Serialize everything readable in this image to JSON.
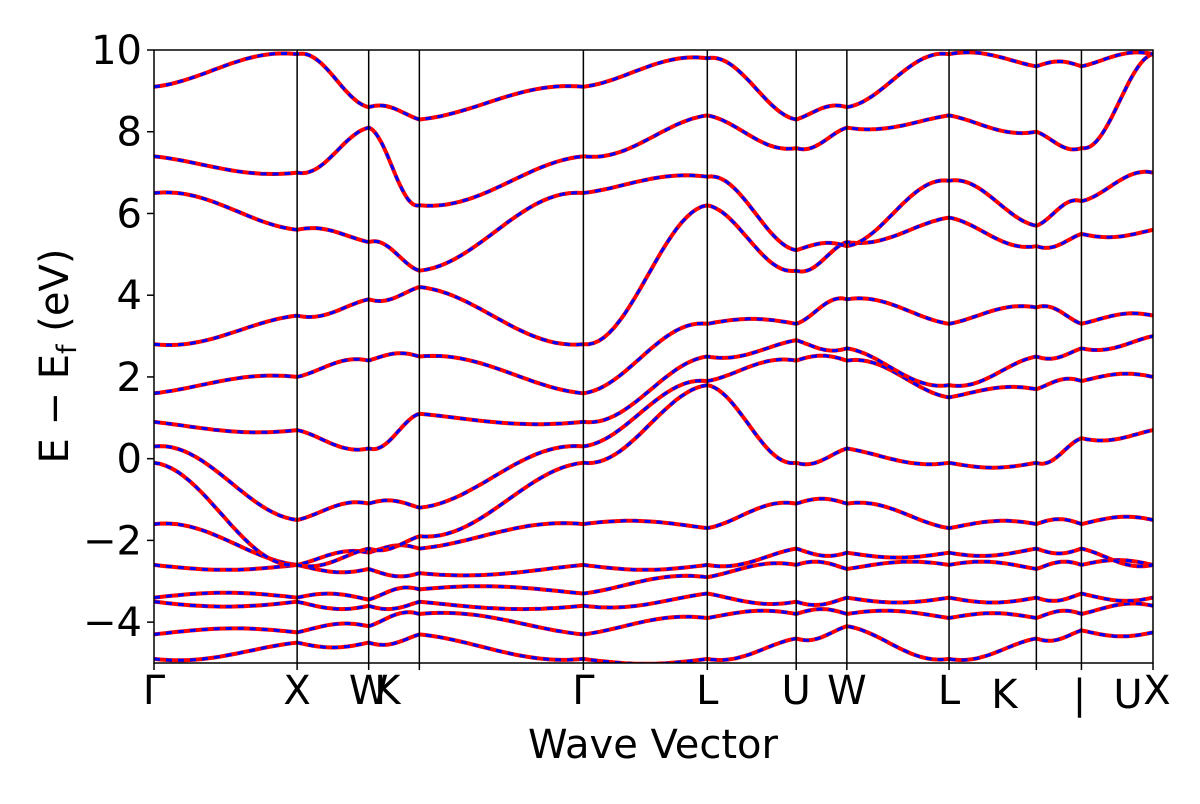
{
  "chart_data": {
    "type": "line",
    "title": "",
    "xlabel": "Wave Vector",
    "ylabel": "E − E_f (eV)",
    "ylabel_main": "E − E",
    "ylabel_sub": "f",
    "ylabel_unit": " (eV)",
    "ylim": [
      -5,
      10
    ],
    "grid": false,
    "legend": "none",
    "yticks": [
      -4,
      -2,
      0,
      2,
      4,
      6,
      8,
      10
    ],
    "ytick_labels": [
      "−4",
      "−2",
      "0",
      "2",
      "4",
      "6",
      "8",
      "10"
    ],
    "kpath": {
      "ticks": [
        0.0,
        1.0,
        1.5,
        1.854,
        3.0,
        3.866,
        4.487,
        4.841,
        5.555,
        6.165,
        6.48,
        6.98
      ],
      "labels": [
        "Γ",
        "X",
        "W",
        "K",
        "Γ",
        "L",
        "U",
        "W",
        "L",
        "K",
        "|",
        "U",
        "X"
      ],
      "labels_x": [
        0.0,
        1.0,
        1.5,
        1.854,
        3.0,
        3.866,
        4.487,
        4.841,
        5.555,
        6.165,
        6.48,
        6.98,
        6.98
      ]
    },
    "xlim": [
      0.0,
      6.98
    ],
    "series": [
      {
        "name": "",
        "color": "#ff0000",
        "style": "solid"
      },
      {
        "name": "",
        "color": "#0000ff",
        "style": "dashed"
      }
    ],
    "bands_at_ticks": [
      [
        -4.9,
        -4.3,
        -3.5,
        -3.4,
        -2.6,
        -1.6,
        -0.1,
        0.3,
        0.9,
        1.6,
        2.8,
        6.5,
        7.4,
        9.1
      ],
      [
        -4.5,
        -4.25,
        -3.5,
        -3.4,
        -2.6,
        -2.6,
        -2.6,
        -1.5,
        0.7,
        2.0,
        3.5,
        5.6,
        7.0,
        9.9
      ],
      [
        -4.5,
        -4.1,
        -3.6,
        -3.45,
        -2.7,
        -2.3,
        -2.2,
        -1.1,
        0.25,
        2.4,
        3.9,
        5.3,
        8.1,
        8.6
      ],
      [
        -4.3,
        -3.8,
        -3.5,
        -3.2,
        -2.8,
        -2.2,
        -1.9,
        -1.2,
        1.1,
        2.5,
        4.2,
        4.6,
        6.2,
        8.3
      ],
      [
        -4.9,
        -4.3,
        -3.6,
        -3.3,
        -2.6,
        -1.6,
        -0.1,
        0.3,
        0.9,
        1.6,
        2.8,
        6.5,
        7.4,
        9.1
      ],
      [
        -4.9,
        -3.9,
        -3.3,
        -2.9,
        -2.6,
        -1.7,
        1.8,
        1.9,
        2.5,
        3.3,
        6.2,
        6.9,
        8.4,
        9.8
      ],
      [
        -4.4,
        -3.8,
        -3.5,
        -2.6,
        -2.2,
        -1.1,
        -0.1,
        2.4,
        2.9,
        3.3,
        4.6,
        5.1,
        7.6,
        8.3
      ],
      [
        -4.1,
        -3.8,
        -3.4,
        -2.7,
        -2.3,
        -1.1,
        0.25,
        2.4,
        2.7,
        3.9,
        5.3,
        5.2,
        8.1,
        8.6
      ],
      [
        -4.9,
        -3.9,
        -3.4,
        -2.6,
        -2.3,
        -1.7,
        -0.1,
        1.5,
        1.8,
        3.3,
        5.9,
        6.8,
        8.4,
        9.9
      ],
      [
        -4.4,
        -3.9,
        -3.4,
        -2.7,
        -2.2,
        -1.6,
        -0.1,
        1.7,
        2.5,
        3.7,
        5.2,
        5.7,
        8.0,
        9.6
      ],
      [
        -4.2,
        -3.8,
        -3.3,
        -2.6,
        -2.2,
        -1.6,
        0.5,
        1.9,
        2.7,
        3.3,
        5.5,
        6.3,
        7.6,
        9.6
      ],
      [
        -4.25,
        -3.6,
        -3.4,
        -2.6,
        -2.6,
        -1.5,
        0.7,
        2.0,
        3.0,
        3.5,
        5.6,
        7.0,
        9.9,
        9.9
      ]
    ]
  }
}
